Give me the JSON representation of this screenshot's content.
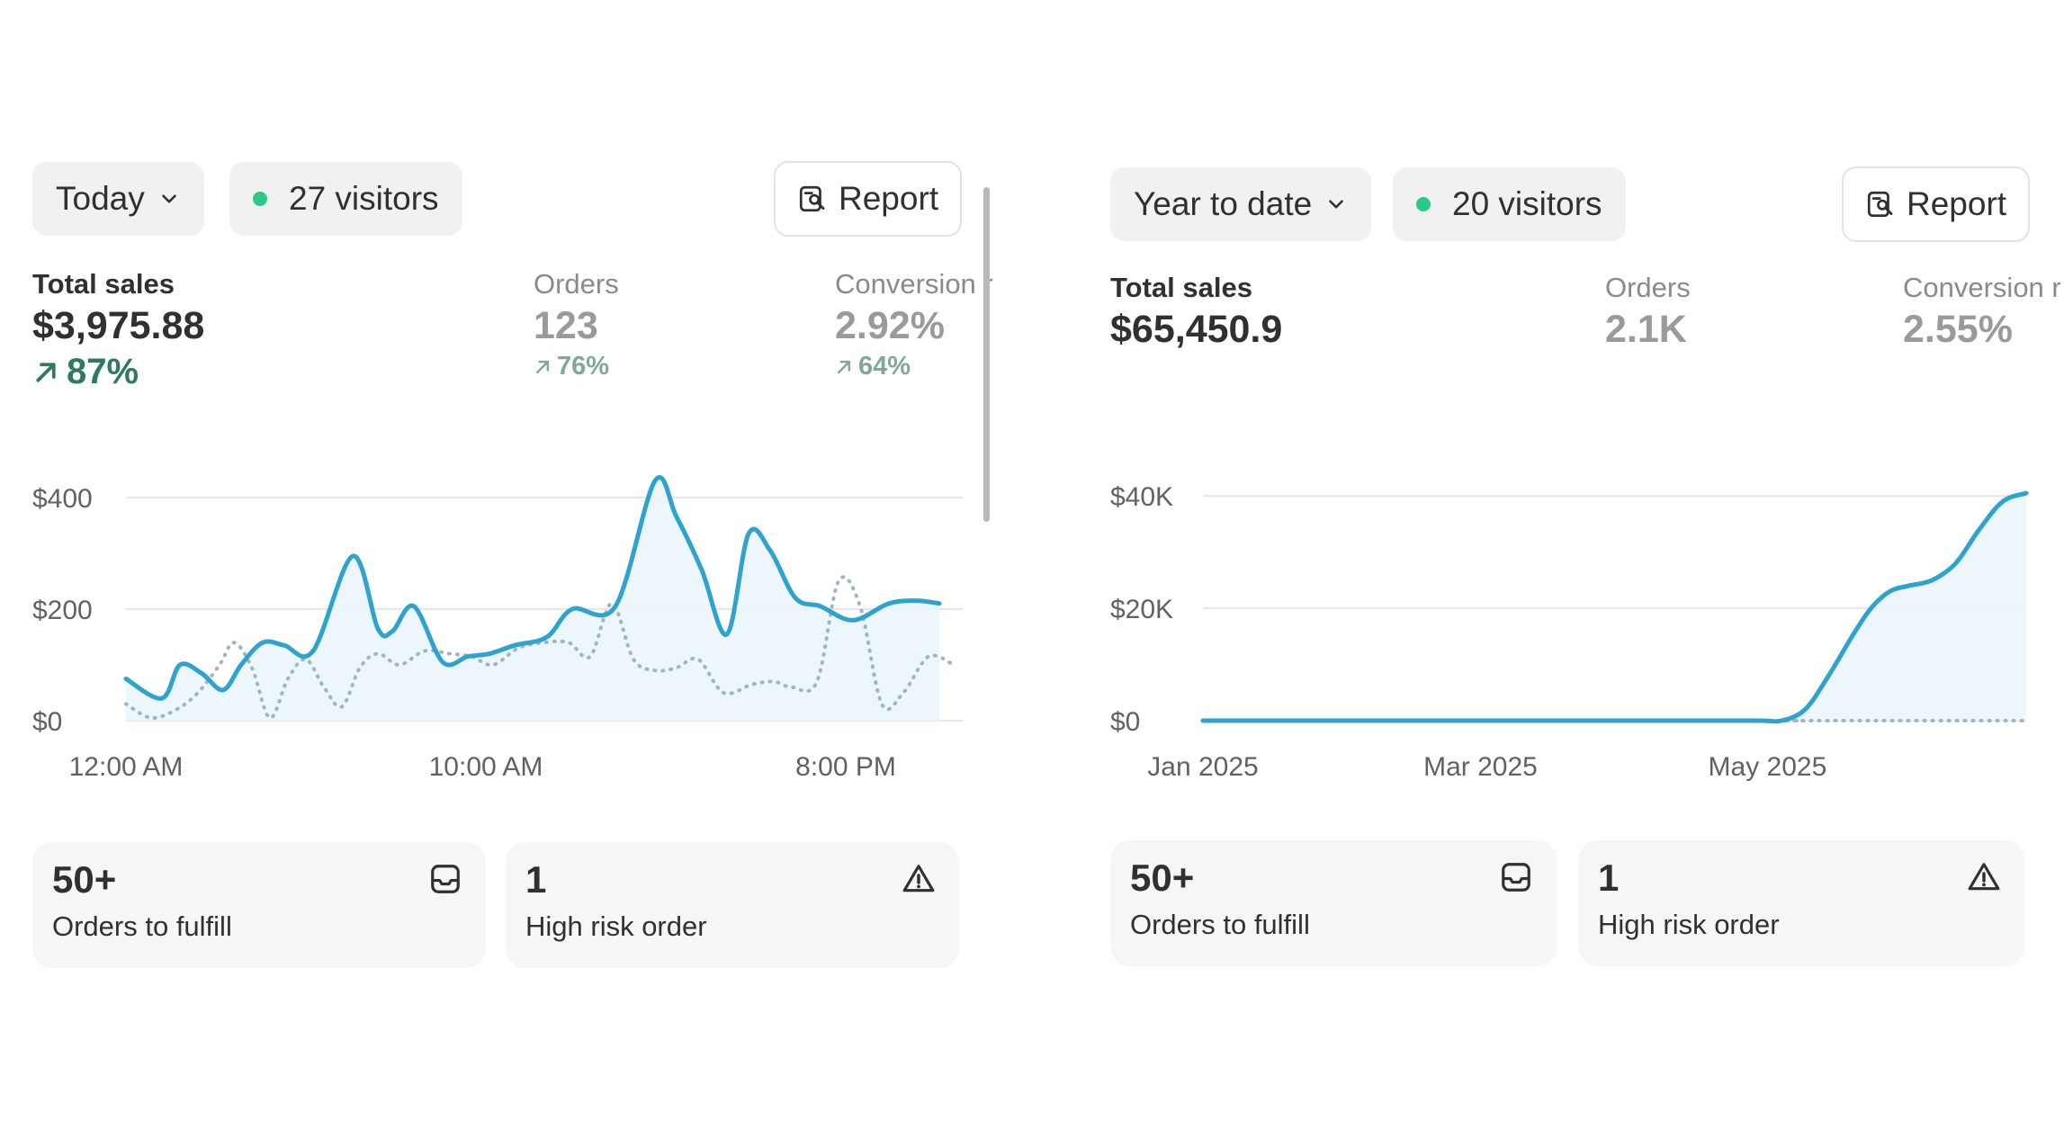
{
  "colors": {
    "sales_line": "#2fa3cf",
    "comparison_line": "#9fb5c6",
    "area_fill": "#eaf5fb",
    "positive": "#2f7a5c",
    "visitor_dot": "#29c98a"
  },
  "panels": [
    {
      "period_label": "Today",
      "visitors_label": "27 visitors",
      "report_label": "Report",
      "metrics": {
        "total_sales": {
          "label": "Total sales",
          "value": "$3,975.88",
          "delta": "87%"
        },
        "orders": {
          "label": "Orders",
          "value": "123",
          "delta": "76%"
        },
        "conversion": {
          "label": "Conversion r",
          "value": "2.92%",
          "delta": "64%"
        }
      },
      "chart_data": {
        "type": "line",
        "ylim": [
          0,
          450
        ],
        "y_ticks": [
          "$400",
          "$200",
          "$0"
        ],
        "y_tick_values": [
          400,
          200,
          0
        ],
        "x_tick_labels": [
          "12:00 AM",
          "10:00 AM",
          "8:00 PM"
        ],
        "x_tick_hours": [
          0,
          10,
          20
        ],
        "x_range_hours": [
          0,
          23
        ],
        "series": [
          {
            "style": "solid",
            "x": [
              0,
              1,
              1.5,
              2.1,
              2.7,
              3.2,
              3.8,
              4.4,
              5.2,
              6.3,
              7.0,
              7.4,
              8.0,
              8.8,
              9.5,
              10.1,
              10.8,
              11.7,
              12.4,
              13.6,
              14.7,
              15.3,
              16.0,
              16.7,
              17.3,
              17.9,
              18.6,
              19.3,
              20.2,
              21.2,
              22.0,
              22.6
            ],
            "values": [
              75,
              40,
              100,
              85,
              55,
              100,
              140,
              135,
              125,
              295,
              165,
              160,
              205,
              105,
              115,
              120,
              135,
              150,
              200,
              205,
              430,
              365,
              270,
              155,
              335,
              305,
              220,
              205,
              180,
              210,
              215,
              210
            ]
          },
          {
            "style": "dotted",
            "x": [
              0,
              0.7,
              1.4,
              2.0,
              2.6,
              3.0,
              3.5,
              4.0,
              4.5,
              5.0,
              5.5,
              6.0,
              6.5,
              7.0,
              7.6,
              8.3,
              9.0,
              9.6,
              10.2,
              10.9,
              11.6,
              12.3,
              12.9,
              13.5,
              14.1,
              14.7,
              15.3,
              15.9,
              16.6,
              17.4,
              18.0,
              18.5,
              19.2,
              19.8,
              20.4,
              21.0,
              21.6,
              22.3,
              23.0
            ],
            "values": [
              30,
              5,
              20,
              50,
              100,
              140,
              95,
              5,
              75,
              110,
              60,
              25,
              95,
              120,
              100,
              125,
              120,
              115,
              100,
              130,
              140,
              140,
              115,
              210,
              110,
              90,
              95,
              110,
              50,
              65,
              70,
              60,
              70,
              250,
              205,
              30,
              50,
              115,
              100
            ]
          }
        ]
      },
      "cards": [
        {
          "number": "50+",
          "label": "Orders to fulfill",
          "icon": "inbox-icon"
        },
        {
          "number": "1",
          "label": "High risk order",
          "icon": "warning-icon"
        }
      ]
    },
    {
      "period_label": "Year to date",
      "visitors_label": "20 visitors",
      "report_label": "Report",
      "metrics": {
        "total_sales": {
          "label": "Total sales",
          "value": "$65,450.9"
        },
        "orders": {
          "label": "Orders",
          "value": "2.1K"
        },
        "conversion": {
          "label": "Conversion r",
          "value": "2.55%"
        }
      },
      "chart_data": {
        "type": "line",
        "ylim": [
          0,
          45000
        ],
        "y_ticks": [
          "$40K",
          "$20K",
          "$0"
        ],
        "y_tick_values": [
          40000,
          20000,
          0
        ],
        "x_tick_labels": [
          "Jan 2025",
          "Mar 2025",
          "May 2025"
        ],
        "x_tick_days": [
          0,
          59,
          120
        ],
        "x_range_days": [
          0,
          175
        ],
        "series": [
          {
            "style": "solid",
            "x": [
              0,
              20,
              40,
              60,
              80,
              100,
              118,
              123,
              128,
              133,
              138,
              142,
              146,
              150,
              155,
              160,
              165,
              170,
              175
            ],
            "values": [
              0,
              0,
              0,
              0,
              0,
              0,
              0,
              0,
              2000,
              8000,
              15000,
              20000,
              23000,
              24000,
              25000,
              28000,
              34000,
              39000,
              40500
            ]
          },
          {
            "style": "dotted",
            "x": [
              0,
              118,
              123,
              140,
              160,
              175
            ],
            "values": [
              0,
              0,
              0,
              0,
              0,
              0
            ]
          }
        ]
      },
      "cards": [
        {
          "number": "50+",
          "label": "Orders to fulfill",
          "icon": "inbox-icon"
        },
        {
          "number": "1",
          "label": "High risk order",
          "icon": "warning-icon"
        }
      ]
    }
  ]
}
